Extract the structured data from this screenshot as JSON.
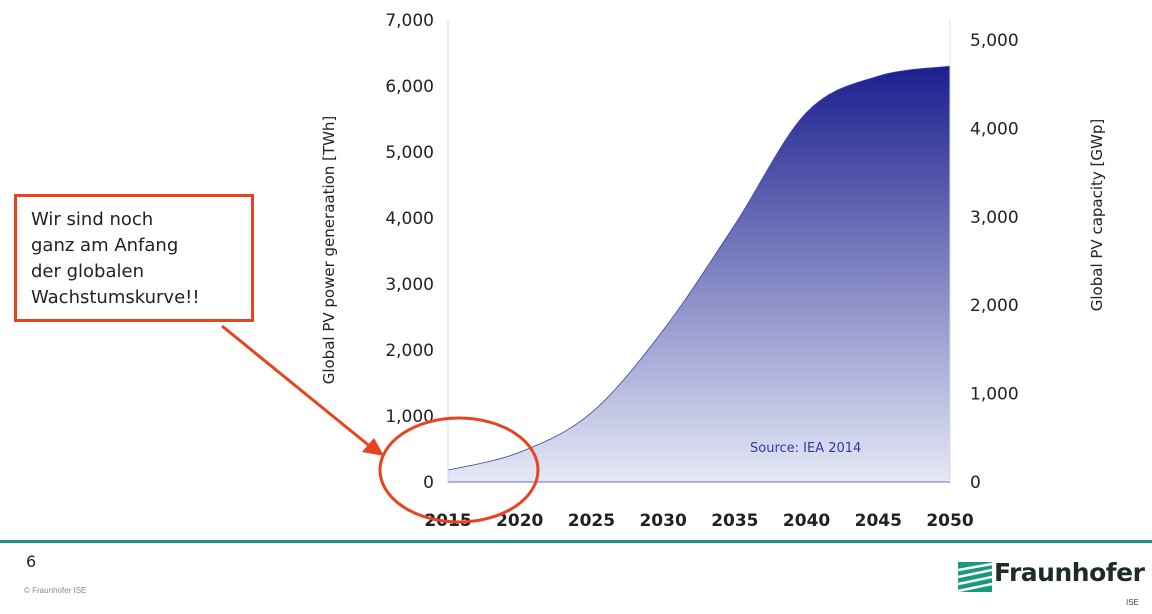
{
  "chart_data": {
    "type": "area",
    "x": [
      2015,
      2020,
      2025,
      2030,
      2035,
      2040,
      2045,
      2050
    ],
    "y": [
      180,
      450,
      1050,
      2300,
      3900,
      5600,
      6150,
      6300
    ],
    "xlim": [
      2015,
      2050
    ],
    "ylim": [
      0,
      7000
    ],
    "y_ticks": [
      "0",
      "1,000",
      "2,000",
      "3,000",
      "4,000",
      "5,000",
      "6,000",
      "7,000"
    ],
    "y2_ticks": [
      "0",
      "1,000",
      "2,000",
      "3,000",
      "4,000",
      "5,000"
    ],
    "x_ticks": [
      "2015",
      "2020",
      "2025",
      "2030",
      "2035",
      "2040",
      "2045",
      "2050"
    ],
    "ylabel": "Global PV power generaation  [TWh]",
    "y2label": "Global PV capacity [GWp]",
    "y2lim": [
      0,
      5000
    ],
    "annotation": "Source:  IEA 2014",
    "grid": false,
    "fill_colors": {
      "top": "#1b1f8e",
      "bottom": "#e6e9f6"
    }
  },
  "callout": {
    "lines": [
      "Wir sind noch",
      "ganz am Anfang",
      "der globalen",
      "Wachstumskurve!!"
    ],
    "border_color": "#e8431f"
  },
  "footer": {
    "page_number": "6",
    "copyright": "© Fraunhofer ISE",
    "logo_text": "Fraunhofer",
    "logo_sub": "ISE",
    "accent_color": "#1a9a7c"
  }
}
